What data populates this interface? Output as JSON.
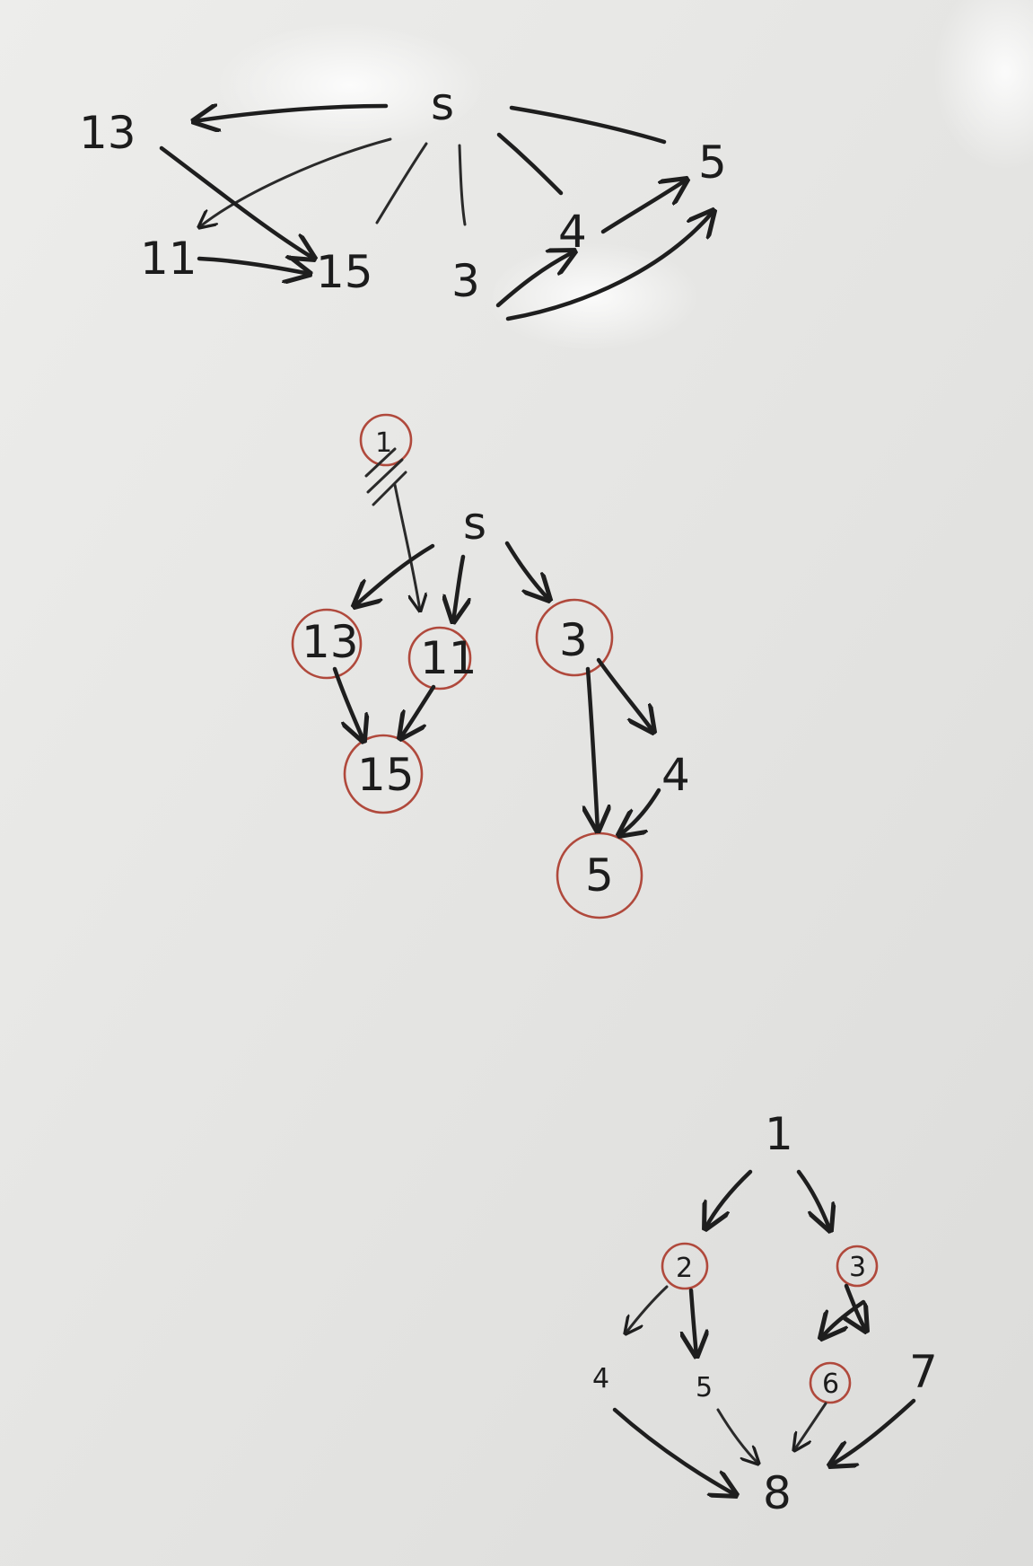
{
  "board": {
    "background": "#e6e6e4",
    "ink_color": "#1e1e1e",
    "circle_color": "#b0493c"
  },
  "graph1": {
    "nodes": {
      "s": "s",
      "n13": "13",
      "n11": "11",
      "n15": "15",
      "n3": "3",
      "n4": "4",
      "n5": "5"
    }
  },
  "graph2": {
    "nodes": {
      "scratch": "1",
      "s": "s",
      "n13": "13",
      "n11": "11",
      "n3": "3",
      "n15": "15",
      "n4": "4",
      "n5": "5"
    }
  },
  "graph3": {
    "nodes": {
      "n1": "1",
      "n2": "2",
      "n3": "3",
      "n4": "4",
      "n5": "5",
      "n6": "6",
      "n7": "7",
      "n8": "8"
    }
  }
}
